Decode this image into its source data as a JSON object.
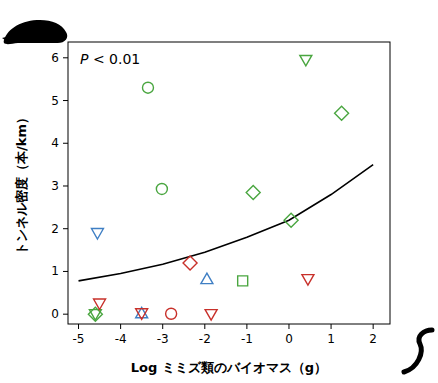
{
  "chart_data": {
    "type": "scatter",
    "annotation": "P < 0.01",
    "x_label": "Log ミミズ類のバイオマス（g）",
    "y_label": "トンネル密度（本/km）",
    "xlim": [
      -5.25,
      2.4
    ],
    "ylim": [
      -0.23,
      6.37
    ],
    "xticks": [
      -5,
      -4,
      -3,
      -2,
      -1,
      0,
      1,
      2
    ],
    "yticks": [
      0,
      1,
      2,
      3,
      4,
      5,
      6
    ],
    "grid": false,
    "series": [
      {
        "color": "#4aa640",
        "marker": "circle",
        "x": [
          -3.35,
          -3.02
        ],
        "values": [
          5.3,
          2.93
        ]
      },
      {
        "color": "#4aa640",
        "marker": "triangle-down",
        "x": [
          0.4,
          -4.6
        ],
        "values": [
          5.95,
          0
        ]
      },
      {
        "color": "#4aa640",
        "marker": "diamond",
        "x": [
          1.25,
          -0.85,
          0.05,
          -4.6
        ],
        "values": [
          4.7,
          2.85,
          2.2,
          0
        ]
      },
      {
        "color": "#4aa640",
        "marker": "square",
        "x": [
          -1.1
        ],
        "values": [
          0.78
        ]
      },
      {
        "color": "#3f7fc4",
        "marker": "triangle-down",
        "x": [
          -4.55
        ],
        "values": [
          1.9
        ]
      },
      {
        "color": "#3f7fc4",
        "marker": "triangle-up",
        "x": [
          -3.5,
          -1.95
        ],
        "values": [
          0.02,
          0.82
        ]
      },
      {
        "color": "#c8302a",
        "marker": "triangle-down",
        "x": [
          -4.5,
          -3.5,
          -1.85,
          0.45
        ],
        "values": [
          0.25,
          0.02,
          0,
          0.82
        ]
      },
      {
        "color": "#c8302a",
        "marker": "circle",
        "x": [
          -2.8
        ],
        "values": [
          0.01
        ]
      },
      {
        "color": "#c8302a",
        "marker": "diamond",
        "x": [
          -2.35
        ],
        "values": [
          1.2
        ]
      },
      {
        "type": "line",
        "color": "#000000",
        "line_style": "solid",
        "x": [
          -5,
          -4,
          -3,
          -2,
          -1,
          0,
          1,
          2
        ],
        "values": [
          0.78,
          0.95,
          1.17,
          1.45,
          1.8,
          2.2,
          2.8,
          3.5
        ]
      }
    ]
  }
}
